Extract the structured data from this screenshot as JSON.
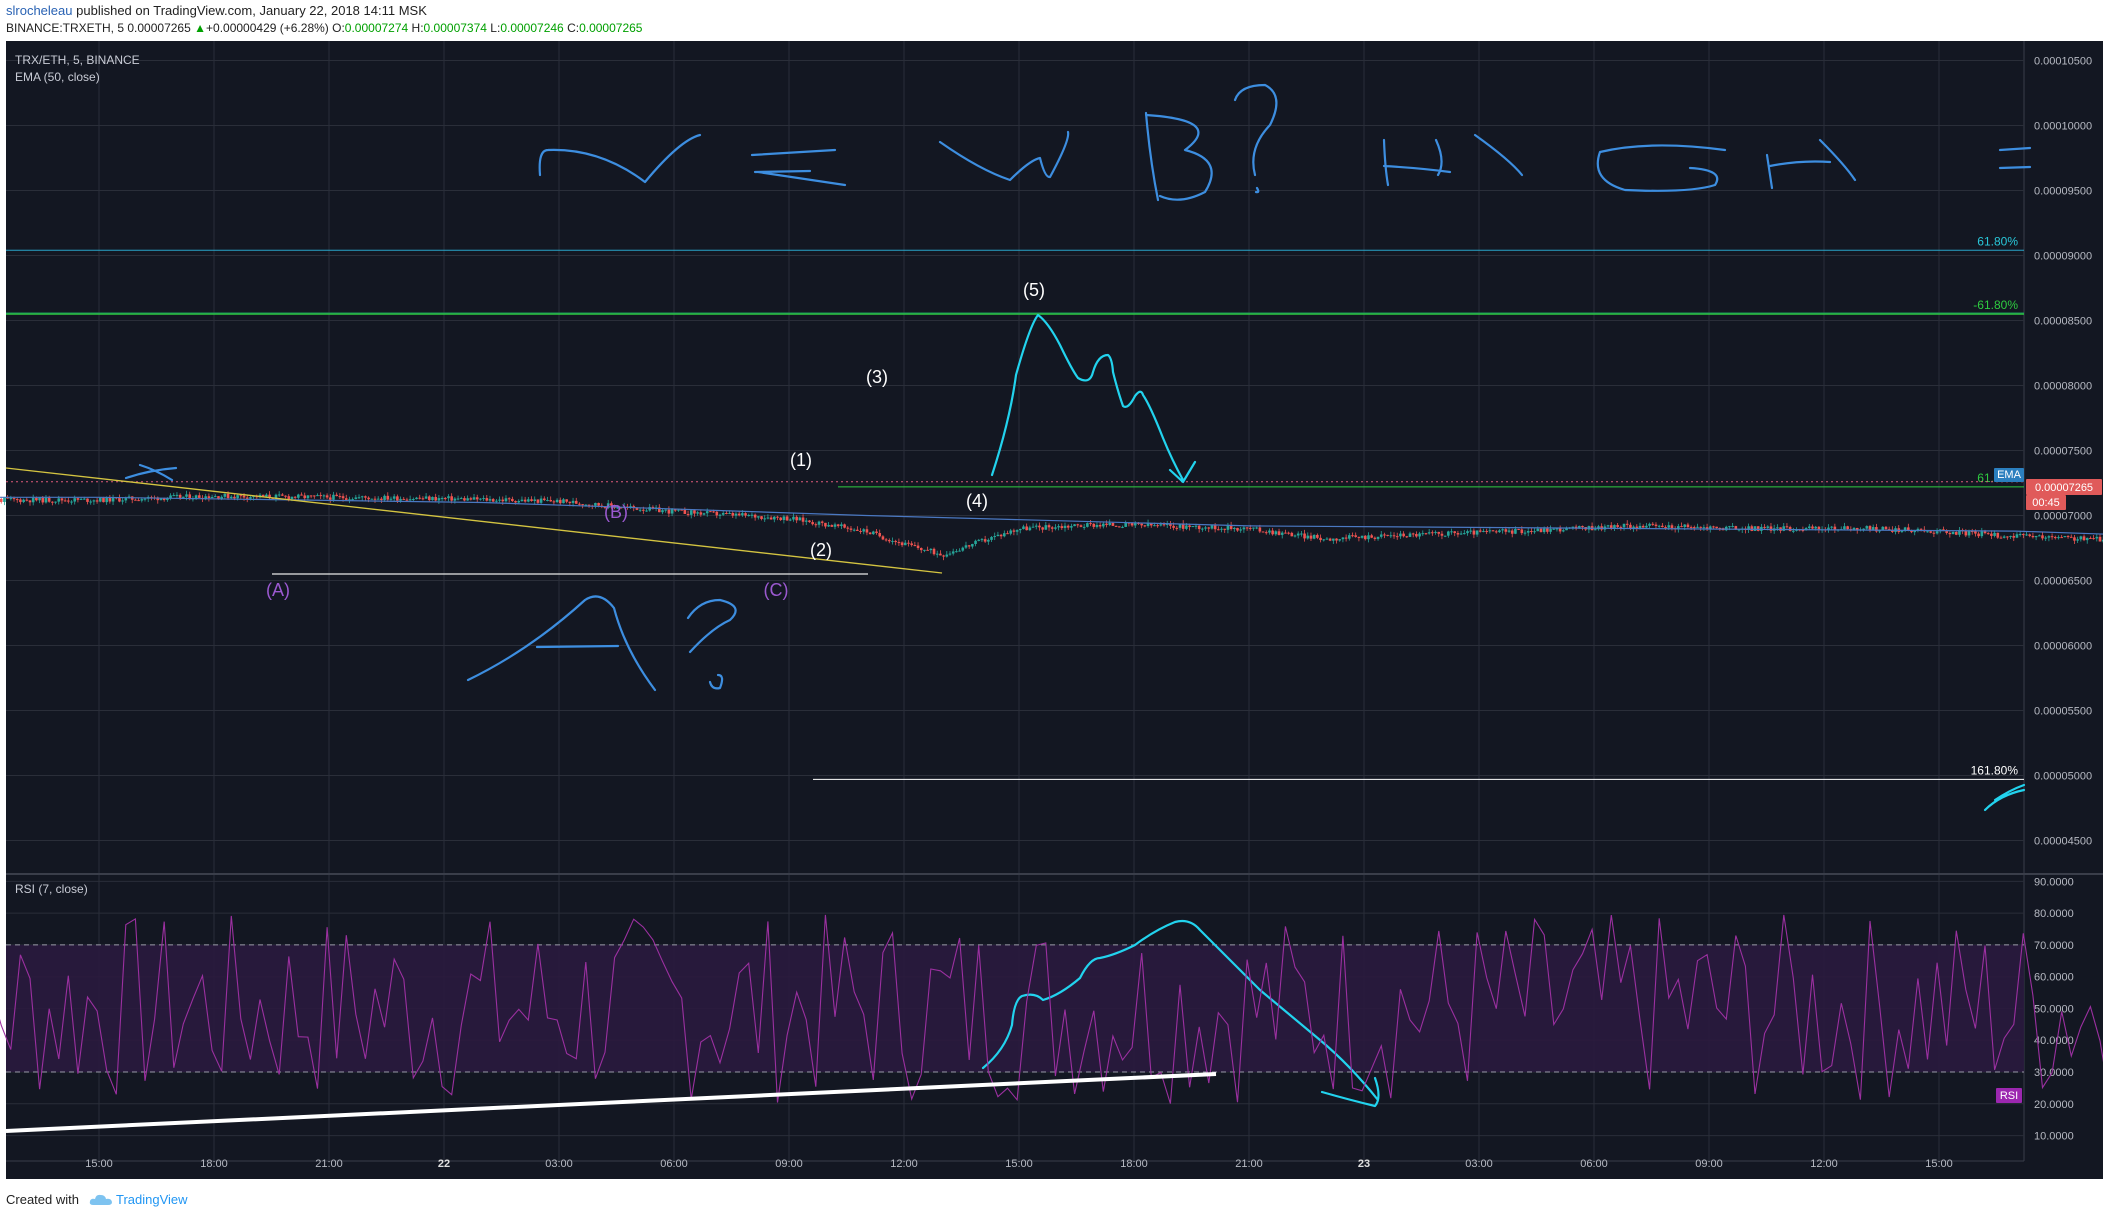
{
  "header": {
    "user": "slrocheleau",
    "published_text": "published on TradingView.com, January 22, 2018 14:11 MSK",
    "symbol": "BINANCE:TRXETH, 5",
    "last": "0.00007265",
    "change": "+0.00000429 (+6.28%)",
    "o_label": "O:",
    "o": "0.00007274",
    "h_label": "H:",
    "h": "0.00007374",
    "l_label": "L:",
    "l": "0.00007246",
    "c_label": "C:",
    "c": "0.00007265"
  },
  "legend": {
    "symbol_line": "TRX/ETH, 5, BINANCE",
    "ema_line": "EMA (50, close)",
    "rsi_line": "RSI (7, close)"
  },
  "badges": {
    "ema": "EMA",
    "price": "0.00007265",
    "timer": "00:45",
    "rsi": "RSI"
  },
  "colors": {
    "background": "#131722",
    "grid": "#2a2e39",
    "up": "#26a69a",
    "down": "#ef5350",
    "ema": "#4a78c2",
    "drawing": "#22d3ee",
    "wave_label": "#9b59d0",
    "fib_green": "#2ecc40",
    "rsi_line": "#9b30a0",
    "rsi_band": "#2a1a3e",
    "price_badge": "#e05a5a",
    "rsi_badge": "#9c27b0"
  },
  "footer": {
    "created_with": "Created with",
    "brand": "TradingView"
  },
  "chart_data": [
    {
      "type": "candlestick",
      "title": "TRX/ETH, 5, BINANCE",
      "x_ticks": [
        "15:00",
        "18:00",
        "21:00",
        "22",
        "03:00",
        "06:00",
        "09:00",
        "12:00",
        "15:00",
        "18:00",
        "21:00",
        "23",
        "03:00",
        "06:00",
        "09:00",
        "12:00",
        "15:00"
      ],
      "y_ticks": [
        "0.00010500",
        "0.00010000",
        "0.00009500",
        "0.00009000",
        "0.00008500",
        "0.00008000",
        "0.00007500",
        "0.00007000",
        "0.00006500",
        "0.00006000",
        "0.00005500",
        "0.00005000",
        "0.00004500"
      ],
      "ylim": [
        4.25e-05,
        0.0001065
      ],
      "price_path": [
        [
          0,
          7.12e-05
        ],
        [
          3,
          7.15e-05
        ],
        [
          6,
          7.14e-05
        ],
        [
          9,
          7.13e-05
        ],
        [
          12,
          7.11e-05
        ],
        [
          15,
          7.03e-05
        ],
        [
          18,
          6.98e-05
        ],
        [
          20,
          6.88e-05
        ],
        [
          21,
          6.78e-05
        ],
        [
          22,
          6.7e-05
        ],
        [
          23,
          6.8e-05
        ],
        [
          24,
          6.9e-05
        ],
        [
          26,
          6.93e-05
        ],
        [
          28,
          6.92e-05
        ],
        [
          30,
          6.9e-05
        ],
        [
          32,
          6.82e-05
        ],
        [
          34,
          6.85e-05
        ],
        [
          37,
          6.88e-05
        ],
        [
          40,
          6.92e-05
        ],
        [
          43,
          6.9e-05
        ],
        [
          46,
          6.9e-05
        ],
        [
          48,
          6.88e-05
        ],
        [
          50,
          6.84e-05
        ],
        [
          52,
          6.82e-05
        ],
        [
          54,
          6.78e-05
        ],
        [
          55,
          6.76e-05
        ],
        [
          56,
          6.73e-05
        ],
        [
          57,
          6.68e-05
        ],
        [
          58,
          6.78e-05
        ],
        [
          59,
          7.05e-05
        ],
        [
          60,
          7.2e-05
        ],
        [
          61,
          7.06e-05
        ],
        [
          62,
          6.99e-05
        ],
        [
          63,
          6.97e-05
        ],
        [
          64,
          7e-05
        ],
        [
          65,
          7.15e-05
        ],
        [
          66,
          7.35e-05
        ],
        [
          67,
          7.58e-05
        ],
        [
          68,
          7.55e-05
        ],
        [
          69,
          7.5e-05
        ],
        [
          70,
          7.48e-05
        ],
        [
          71,
          7.53e-05
        ],
        [
          72,
          7.58e-05
        ],
        [
          73,
          7.52e-05
        ],
        [
          74,
          7.4e-05
        ],
        [
          75,
          7.27e-05
        ]
      ],
      "ema_path": [
        [
          0,
          7.14e-05
        ],
        [
          10,
          7.1e-05
        ],
        [
          20,
          7e-05
        ],
        [
          30,
          6.92e-05
        ],
        [
          40,
          6.9e-05
        ],
        [
          50,
          6.88e-05
        ],
        [
          56,
          6.82e-05
        ],
        [
          60,
          6.88e-05
        ],
        [
          65,
          7.05e-05
        ],
        [
          70,
          7.25e-05
        ],
        [
          74,
          7.35e-05
        ],
        [
          75,
          7.34e-05
        ]
      ],
      "horizontal_lines": [
        {
          "label": "61.80%",
          "value": 9.04e-05
        },
        {
          "label": "-61.80%",
          "value": 8.55e-05
        },
        {
          "label": "61.80%",
          "value": 7.22e-05
        },
        {
          "label": "161.80%",
          "value": 4.97e-05
        },
        {
          "label": "",
          "value": 7.26e-05
        }
      ],
      "wave_labels": [
        "(A)",
        "(B)",
        "(C)",
        "(1)",
        "(2)",
        "(3)",
        "(4)",
        "(5)"
      ],
      "handwritten_annotations": [
        "NEW B? HIGH",
        "A?"
      ]
    },
    {
      "type": "line",
      "title": "RSI (7, close)",
      "y_ticks": [
        "90.0000",
        "80.0000",
        "70.0000",
        "60.0000",
        "50.0000",
        "40.0000",
        "30.0000",
        "20.0000",
        "10.0000"
      ],
      "ylim": [
        2,
        92
      ],
      "bands": [
        30,
        70
      ]
    }
  ]
}
